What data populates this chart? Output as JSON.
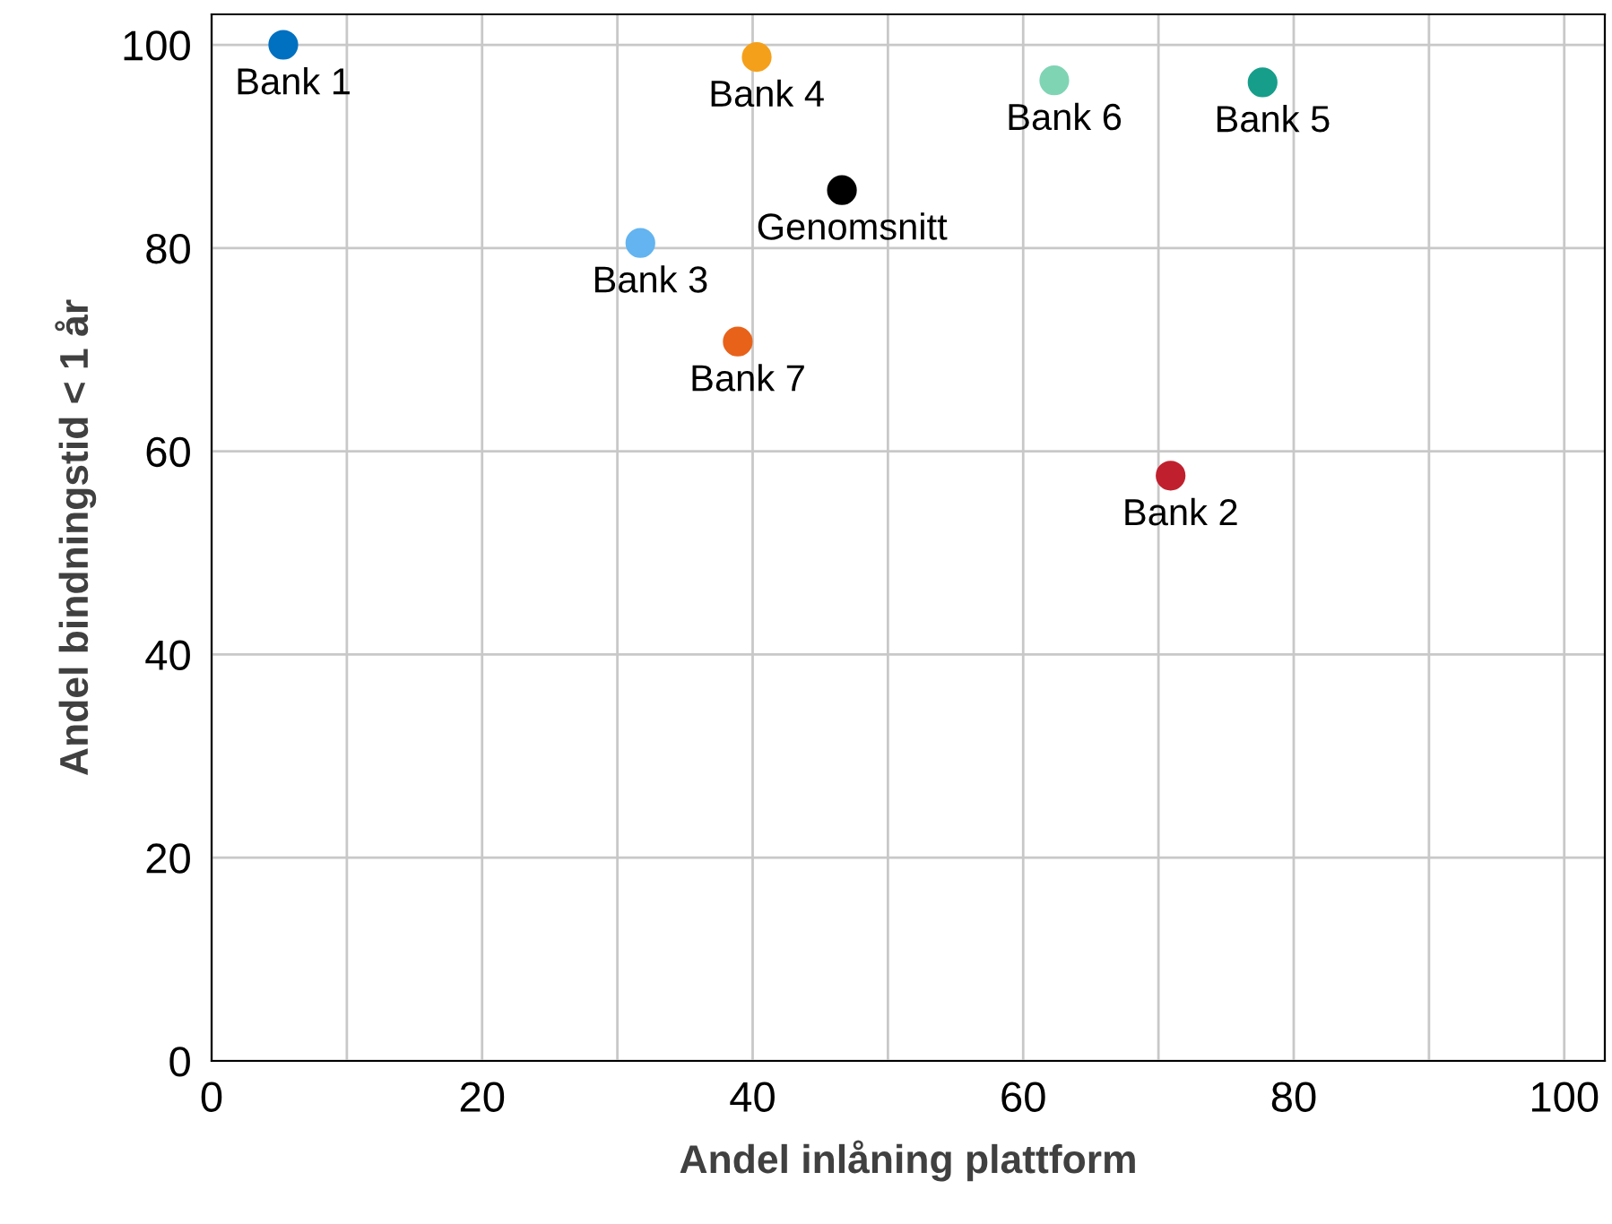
{
  "chart_data": {
    "type": "scatter",
    "xlabel": "Andel inlåning plattform",
    "ylabel": "Andel bindningstid < 1 år",
    "series": [
      {
        "name": "Bank 1",
        "color": "#0070c0",
        "x": [
          5.3
        ],
        "values": [
          100
        ]
      },
      {
        "name": "Bank 4",
        "color": "#f5a01a",
        "x": [
          40.3
        ],
        "values": [
          98.8
        ]
      },
      {
        "name": "Bank 6",
        "color": "#7fd4b4",
        "x": [
          62.3
        ],
        "values": [
          96.5
        ]
      },
      {
        "name": "Bank 5",
        "color": "#169e8a",
        "x": [
          77.7
        ],
        "values": [
          96.3
        ]
      },
      {
        "name": "Genomsnitt",
        "color": "#000000",
        "x": [
          46.6
        ],
        "values": [
          85.7
        ]
      },
      {
        "name": "Bank 3",
        "color": "#63b4f0",
        "x": [
          31.7
        ],
        "values": [
          80.5
        ]
      },
      {
        "name": "Bank 7",
        "color": "#e8621a",
        "x": [
          38.9
        ],
        "values": [
          70.8
        ]
      },
      {
        "name": "Bank 2",
        "color": "#c0202e",
        "x": [
          70.9
        ],
        "values": [
          57.6
        ]
      }
    ],
    "xlim": [
      0,
      103
    ],
    "ylim": [
      0,
      103
    ],
    "xticks": [
      0,
      {
        "value": 10,
        "label": null
      },
      20,
      {
        "value": 30,
        "label": null
      },
      40,
      {
        "value": 50,
        "label": null
      },
      60,
      {
        "value": 70,
        "label": null
      },
      80,
      {
        "value": 90,
        "label": null
      },
      100
    ],
    "yticks": [
      0,
      20,
      40,
      60,
      80,
      100
    ],
    "grid": true,
    "marker": "circle",
    "legend": false
  }
}
